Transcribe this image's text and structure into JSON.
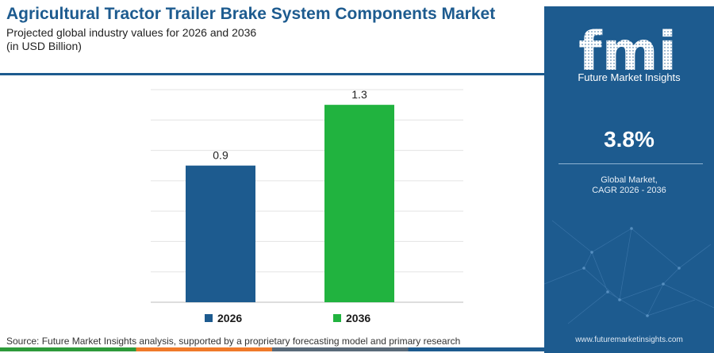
{
  "header": {
    "title": "Agricultural Tractor Trailer Brake System Components Market",
    "subtitle_line1": "Projected global industry values for 2026 and 2036",
    "subtitle_line2": "(in USD Billion)"
  },
  "chart_data": {
    "type": "bar",
    "title": "Agricultural Tractor Trailer Brake System Components Market",
    "categories": [
      "2026",
      "2036"
    ],
    "values": [
      0.9,
      1.3
    ],
    "colors": [
      "#1d5b8f",
      "#21b33f"
    ],
    "ylim": [
      0,
      1.4
    ],
    "grid": true,
    "legend": "bottom",
    "data_labels": [
      "0.9",
      "1.3"
    ]
  },
  "legend": {
    "items": [
      {
        "label": "2026",
        "color": "#1d5b8f"
      },
      {
        "label": "2036",
        "color": "#21b33f"
      }
    ]
  },
  "footer": {
    "source": "Source: Future Market Insights analysis, supported by a proprietary forecasting model and primary research"
  },
  "side_panel": {
    "logo_text": "fmi",
    "brand_name": "Future Market Insights",
    "metric_value": "3.8%",
    "metric_label_line1": "Global Market,",
    "metric_label_line2": "CAGR 2026 - 2036",
    "website": "www.futuremarketinsights.com",
    "background_color": "#1d5b8f"
  }
}
